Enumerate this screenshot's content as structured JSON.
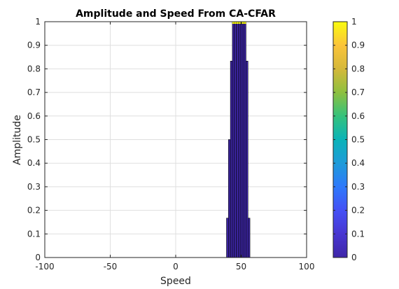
{
  "chart_data": {
    "type": "bar",
    "title": "Amplitude and Speed From CA-CFAR",
    "xlabel": "Speed",
    "ylabel": "Amplitude",
    "xlim": [
      -100,
      100
    ],
    "ylim": [
      0,
      1
    ],
    "x_ticks": [
      "-100",
      "-50",
      "0",
      "50",
      "100"
    ],
    "y_ticks": [
      "0",
      "0.1",
      "0.2",
      "0.3",
      "0.4",
      "0.5",
      "0.6",
      "0.7",
      "0.8",
      "0.9",
      "1"
    ],
    "grid": true,
    "x": [
      39.5,
      41,
      42.5,
      44,
      45.5,
      47,
      48.5,
      50,
      51.5,
      53,
      54.5,
      56
    ],
    "values": [
      0.167,
      0.5,
      0.833,
      1,
      1,
      1,
      1,
      1,
      1,
      1,
      0.833,
      0.167
    ],
    "bar_color": "#3e26a8",
    "top_color": "#f9fb0e",
    "colorbar": {
      "colormap": "parula",
      "range": [
        0,
        1
      ],
      "ticks": [
        "0",
        "0.1",
        "0.2",
        "0.3",
        "0.4",
        "0.5",
        "0.6",
        "0.7",
        "0.8",
        "0.9",
        "1"
      ],
      "colors": [
        "#3e26a8",
        "#4836d1",
        "#4450f5",
        "#2e79fb",
        "#1e9bd9",
        "#0ab3b8",
        "#35c27c",
        "#8ec03f",
        "#d5b83a",
        "#fbc43a",
        "#f9fb0e"
      ]
    }
  }
}
